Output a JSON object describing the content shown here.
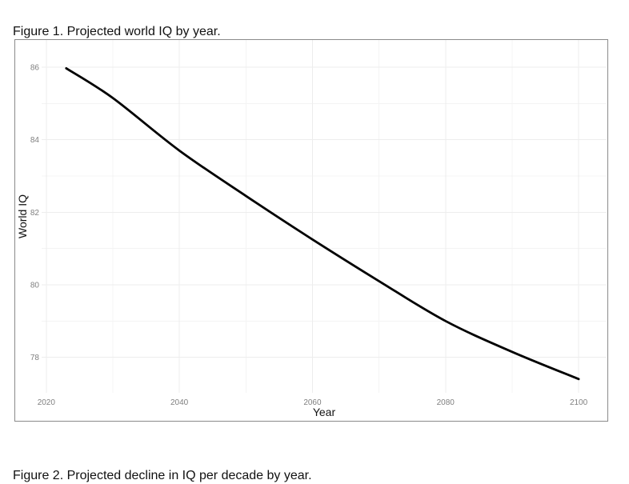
{
  "figure1": {
    "caption": "Figure 1. Projected world IQ by year."
  },
  "figure2": {
    "caption": "Figure 2. Projected decline in IQ per decade by year."
  },
  "chart_data": {
    "type": "line",
    "title": "",
    "xlabel": "Year",
    "ylabel": "World IQ",
    "x": [
      2023,
      2030,
      2040,
      2050,
      2060,
      2070,
      2080,
      2090,
      2100
    ],
    "series": [
      {
        "name": "World IQ",
        "values": [
          85.97,
          85.15,
          83.7,
          82.45,
          81.25,
          80.1,
          79.0,
          78.15,
          77.4
        ]
      }
    ],
    "x_ticks": [
      2020,
      2040,
      2060,
      2080,
      2100
    ],
    "x_minor_ticks": [
      2030,
      2050,
      2070,
      2090
    ],
    "y_ticks": [
      78,
      80,
      82,
      84,
      86
    ],
    "y_minor_ticks": [
      77,
      79,
      81,
      83,
      85
    ],
    "xlim": [
      2019.3,
      2104.2
    ],
    "ylim": [
      77.02,
      86.75
    ],
    "grid": true,
    "legend": "none",
    "colors": {
      "line": "#000000",
      "grid_major": "#ededed",
      "grid_minor": "#f4f4f4",
      "tick_label": "#7f7f7f",
      "axis_title": "#111111",
      "frame_border": "#8a8a8a",
      "background": "#ffffff"
    },
    "line_width": 2.8
  }
}
